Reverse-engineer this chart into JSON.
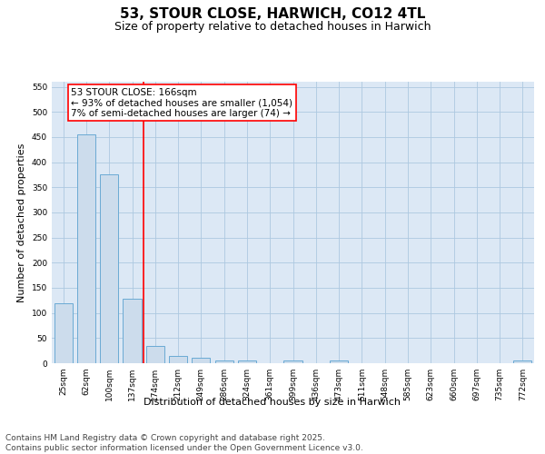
{
  "title": "53, STOUR CLOSE, HARWICH, CO12 4TL",
  "subtitle": "Size of property relative to detached houses in Harwich",
  "xlabel": "Distribution of detached houses by size in Harwich",
  "ylabel": "Number of detached properties",
  "categories": [
    "25sqm",
    "62sqm",
    "100sqm",
    "137sqm",
    "174sqm",
    "212sqm",
    "249sqm",
    "286sqm",
    "324sqm",
    "361sqm",
    "399sqm",
    "436sqm",
    "473sqm",
    "511sqm",
    "548sqm",
    "585sqm",
    "623sqm",
    "660sqm",
    "697sqm",
    "735sqm",
    "772sqm"
  ],
  "values": [
    120,
    455,
    375,
    128,
    35,
    15,
    10,
    5,
    5,
    0,
    5,
    0,
    5,
    0,
    0,
    0,
    0,
    0,
    0,
    0,
    5
  ],
  "bar_color": "#ccdcec",
  "bar_edge_color": "#6aaad4",
  "vline_pos": 3.5,
  "vline_color": "red",
  "annotation_text": "53 STOUR CLOSE: 166sqm\n← 93% of detached houses are smaller (1,054)\n7% of semi-detached houses are larger (74) →",
  "annotation_box_edgecolor": "red",
  "annotation_text_color": "black",
  "annotation_bg_color": "white",
  "ylim": [
    0,
    560
  ],
  "yticks": [
    0,
    50,
    100,
    150,
    200,
    250,
    300,
    350,
    400,
    450,
    500,
    550
  ],
  "grid_color": "#adc8e0",
  "background_color": "#dce8f5",
  "footer_line1": "Contains HM Land Registry data © Crown copyright and database right 2025.",
  "footer_line2": "Contains public sector information licensed under the Open Government Licence v3.0.",
  "title_fontsize": 11,
  "subtitle_fontsize": 9,
  "axis_label_fontsize": 8,
  "tick_fontsize": 6.5,
  "annotation_fontsize": 7.5,
  "footer_fontsize": 6.5
}
